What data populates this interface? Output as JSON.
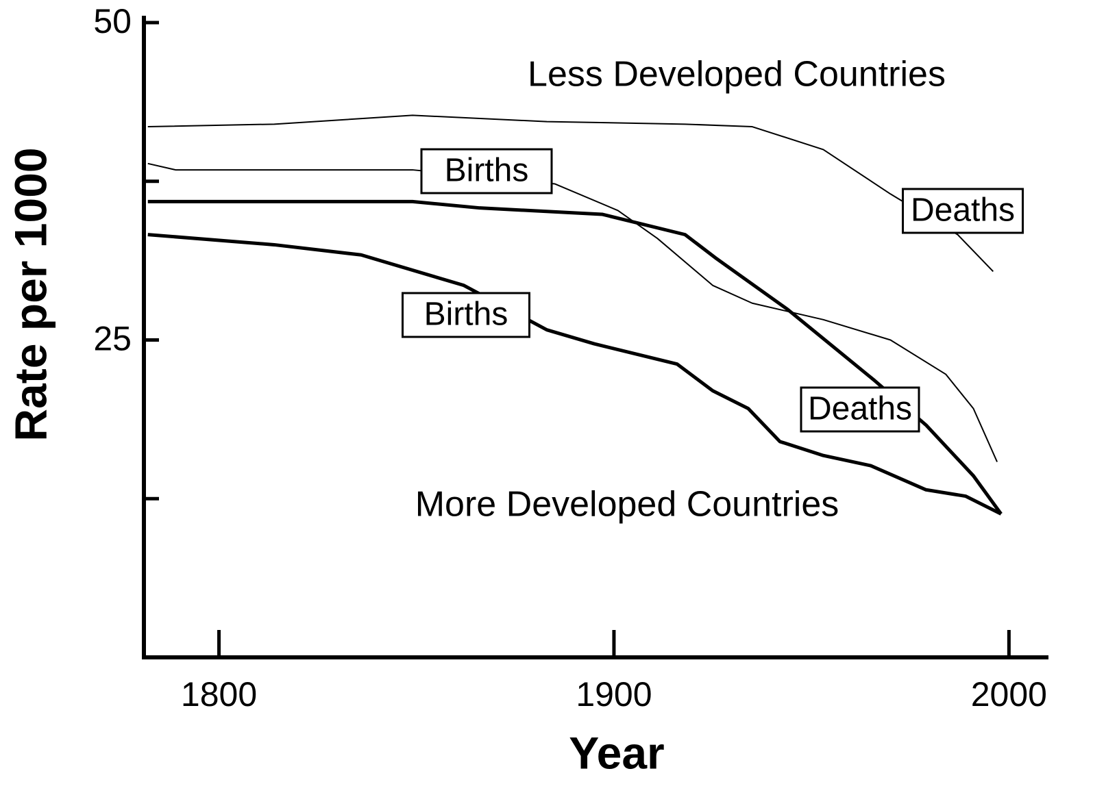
{
  "chart_data": {
    "type": "line",
    "xlabel": "Year",
    "ylabel": "Rate per 1000",
    "xlim": [
      1781,
      2010
    ],
    "ylim": [
      0,
      50
    ],
    "xticks": [
      1800,
      1900,
      2000
    ],
    "yticks": [
      25,
      50
    ],
    "yminor_ticks": [
      12.5,
      37.5
    ],
    "grid": false,
    "annotations": [
      "Less Developed Countries",
      "More Developed Countries"
    ],
    "series": [
      {
        "name": "Births",
        "color": "#000000",
        "line_width": 2,
        "x": [
          1782,
          1814,
          1849,
          1883,
          1918,
          1935,
          1953,
          1970,
          1987,
          1996
        ],
        "values": [
          41.8,
          42,
          42.7,
          42.2,
          42,
          41.8,
          40,
          36.5,
          33.3,
          30.4
        ]
      },
      {
        "name": "Deaths",
        "color": "#000000",
        "line_width": 2,
        "x": [
          1782,
          1789,
          1849,
          1885,
          1901,
          1911,
          1925,
          1935,
          1953,
          1970,
          1984,
          1991,
          1997
        ],
        "values": [
          38.9,
          38.4,
          38.4,
          37.3,
          35.2,
          33,
          29.3,
          27.9,
          26.6,
          25,
          22.3,
          19.6,
          15.4
        ]
      },
      {
        "name": "Births",
        "color": "#000000",
        "line_width": 5,
        "x": [
          1782,
          1849,
          1866,
          1897,
          1918,
          1926,
          1944,
          1966,
          1979,
          1991,
          1998
        ],
        "values": [
          35.9,
          35.9,
          35.4,
          34.9,
          33.3,
          31.4,
          27.4,
          21.8,
          18.3,
          14.3,
          11.3
        ]
      },
      {
        "name": "Deaths",
        "color": "#000000",
        "line_width": 5,
        "x": [
          1782,
          1814,
          1836,
          1862,
          1883,
          1895,
          1916,
          1925,
          1934,
          1942,
          1953,
          1965,
          1979,
          1989,
          1998
        ],
        "values": [
          33.3,
          32.5,
          31.7,
          29.3,
          25.8,
          24.7,
          23.1,
          21,
          19.6,
          17,
          15.9,
          15.1,
          13.2,
          12.7,
          11.3
        ]
      }
    ]
  }
}
